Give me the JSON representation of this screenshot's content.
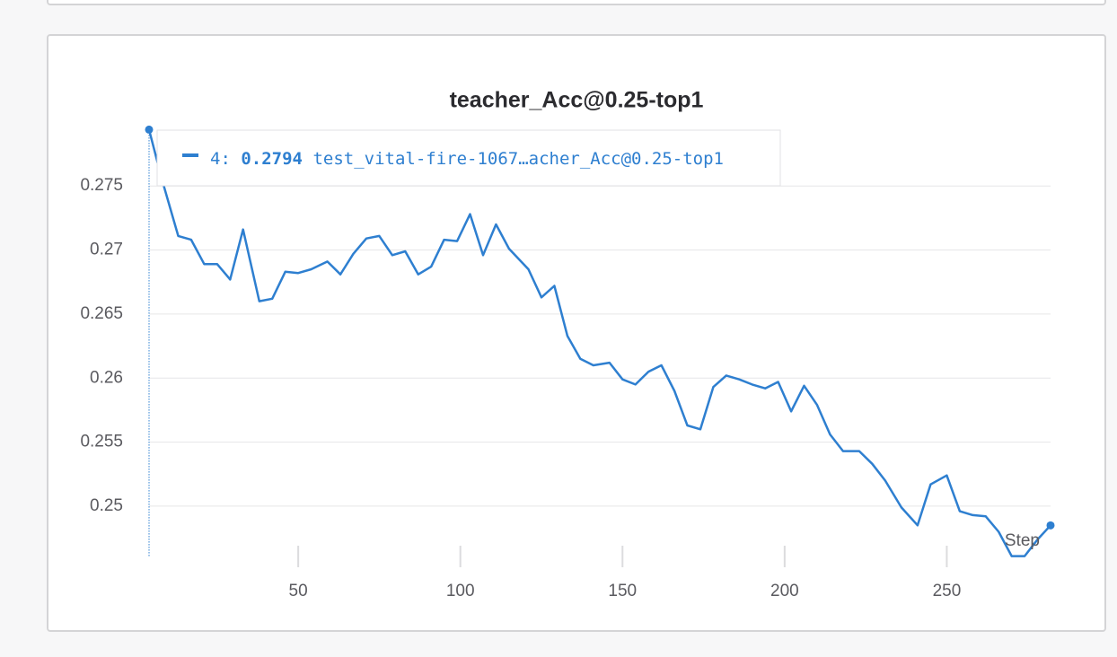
{
  "chart_data": {
    "type": "line",
    "title": "teacher_Acc@0.25-top1",
    "x_label": "Step",
    "x": [
      4,
      8,
      13,
      17,
      21,
      25,
      29,
      33,
      38,
      42,
      46,
      50,
      54,
      59,
      63,
      67,
      71,
      75,
      79,
      83,
      87,
      91,
      95,
      99,
      103,
      107,
      111,
      115,
      121,
      125,
      129,
      133,
      137,
      141,
      146,
      150,
      154,
      158,
      162,
      166,
      170,
      174,
      178,
      182,
      186,
      190,
      194,
      198,
      202,
      206,
      210,
      214,
      218,
      223,
      227,
      231,
      236,
      241,
      245,
      250,
      254,
      258,
      262,
      266,
      270,
      274,
      278,
      282
    ],
    "series": [
      {
        "name": "test_vital-fire-1067…acher_Acc@0.25-top1",
        "color": "#2e7fd0",
        "values": [
          0.2794,
          0.2755,
          0.2711,
          0.2708,
          0.2689,
          0.2689,
          0.2677,
          0.2716,
          0.266,
          0.2662,
          0.2683,
          0.2682,
          0.2685,
          0.2691,
          0.2681,
          0.2697,
          0.2709,
          0.2711,
          0.2696,
          0.2699,
          0.2681,
          0.2687,
          0.2708,
          0.2707,
          0.2728,
          0.2696,
          0.272,
          0.2701,
          0.2685,
          0.2663,
          0.2672,
          0.2633,
          0.2615,
          0.261,
          0.2612,
          0.2599,
          0.2595,
          0.2605,
          0.261,
          0.259,
          0.2563,
          0.256,
          0.2593,
          0.2602,
          0.2599,
          0.2595,
          0.2592,
          0.2597,
          0.2574,
          0.2594,
          0.2579,
          0.2556,
          0.2543,
          0.2543,
          0.2533,
          0.252,
          0.2499,
          0.2485,
          0.2517,
          0.2524,
          0.2496,
          0.2493,
          0.2492,
          0.248,
          0.2461,
          0.2461,
          0.2474,
          0.2485
        ]
      }
    ],
    "tooltip": {
      "step": "4:",
      "value": 0.2794
    },
    "xlim": [
      4,
      282
    ],
    "xticks": [
      50,
      100,
      150,
      200,
      250
    ],
    "ylim": [
      0.246,
      0.2795
    ],
    "yticks": [
      0.25,
      0.255,
      0.26,
      0.265,
      0.27,
      0.275
    ],
    "grid": true
  }
}
